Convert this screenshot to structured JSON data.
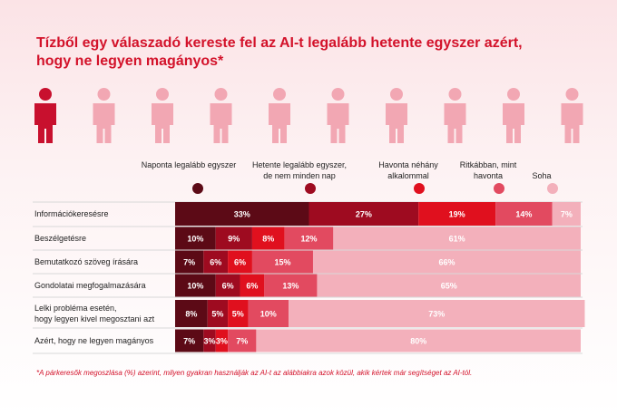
{
  "chart_data": {
    "type": "stacked-bar-horizontal",
    "title": "Tízből egy válaszadó kereste fel az AI-t legalább hetente egyszer azért,\nhogy ne legyen magányos*",
    "categories": [
      "Információkeresésre",
      "Beszélgetésre",
      "Bemutatkozó szöveg írására",
      "Gondolatai megfogalmazására",
      "Lelki probléma esetén,\nhogy legyen kivel megosztani azt",
      "Azért, hogy ne legyen magányos"
    ],
    "series": [
      {
        "name": "Naponta legalább egyszer",
        "color": "#5c0a16",
        "values": [
          33,
          10,
          7,
          10,
          8,
          7
        ],
        "value_labels": [
          "33%",
          "10%",
          "7%",
          "10%",
          "8%",
          "7%"
        ]
      },
      {
        "name": "Hetente legalább egyszer,\nde nem minden nap",
        "color": "#9e0b20",
        "values": [
          27,
          9,
          6,
          6,
          5,
          3
        ],
        "value_labels": [
          "27%",
          "9%",
          "6%",
          "6%",
          "5%",
          "3%"
        ]
      },
      {
        "name": "Havonta néhány\nalkalommal",
        "color": "#e0101e",
        "values": [
          19,
          8,
          6,
          6,
          5,
          3
        ],
        "value_labels": [
          "19%",
          "8%",
          "6%",
          "6%",
          "5%",
          "3%"
        ]
      },
      {
        "name": "Ritkábban, mint\nhavonta",
        "color": "#e24a60",
        "values": [
          14,
          12,
          15,
          13,
          10,
          7
        ],
        "value_labels": [
          "14%",
          "12%",
          "15%",
          "13%",
          "10%",
          "7%"
        ]
      },
      {
        "name": "Soha",
        "color": "#f3b0bb",
        "values": [
          7,
          61,
          66,
          65,
          73,
          80
        ],
        "value_labels": [
          "7%",
          "61%",
          "66%",
          "65%",
          "73%",
          "80%"
        ]
      }
    ],
    "xlim": [
      0,
      100
    ],
    "footnote": "*A párkeresők megoszlása (%) azerint, milyen gyakran használják az AI-t az alábbiakra azok közül, akik kértek már segítséget az AI-tól."
  }
}
